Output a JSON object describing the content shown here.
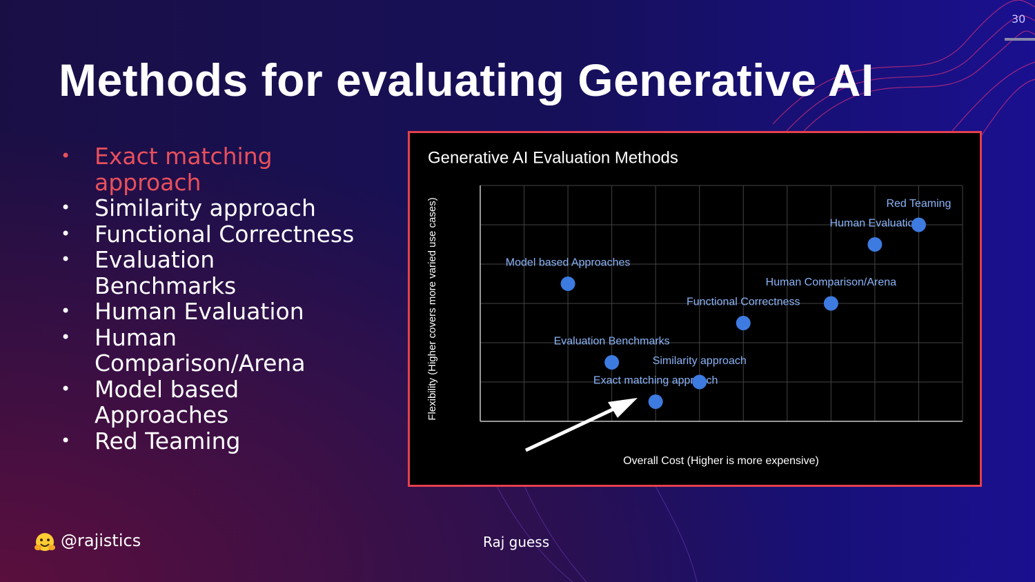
{
  "slide": {
    "title": "Methods for evaluating Generative AI",
    "bullets": [
      "Exact matching approach",
      "Similarity approach",
      "Functional Correctness",
      "Evaluation Benchmarks",
      "Human Evaluation",
      "Human Comparison/Arena",
      "Model based Approaches",
      "Red Teaming"
    ],
    "page_number": "30",
    "handle": "@rajistics",
    "footer_note": "Raj guess"
  },
  "chart_data": {
    "type": "scatter",
    "title": "Generative AI Evaluation Methods",
    "x_label": "Overall Cost (Higher is more expensive)",
    "y_label": "Flexibility (Higher covers more varied use cases)",
    "labels": [
      "Exact matching approach",
      "Similarity approach",
      "Evaluation Benchmarks",
      "Model based Approaches",
      "Functional Correctness",
      "Human Comparison/Arena",
      "Human Evaluation",
      "Red Teaming"
    ],
    "x": [
      4,
      5,
      3,
      2,
      6,
      8,
      9,
      10
    ],
    "values": [
      0.5,
      1,
      1.5,
      3.5,
      2.5,
      3,
      4.5,
      5
    ],
    "color": "#3d7be0",
    "xlim": [
      0,
      11
    ],
    "ylim": [
      0,
      6
    ],
    "xticks": [
      0,
      1,
      2,
      3,
      4,
      5,
      6,
      7,
      8,
      9,
      10,
      11
    ],
    "yticks": [
      0,
      1,
      2,
      3,
      4,
      5,
      6
    ],
    "grid": true,
    "tick_labels": false
  }
}
